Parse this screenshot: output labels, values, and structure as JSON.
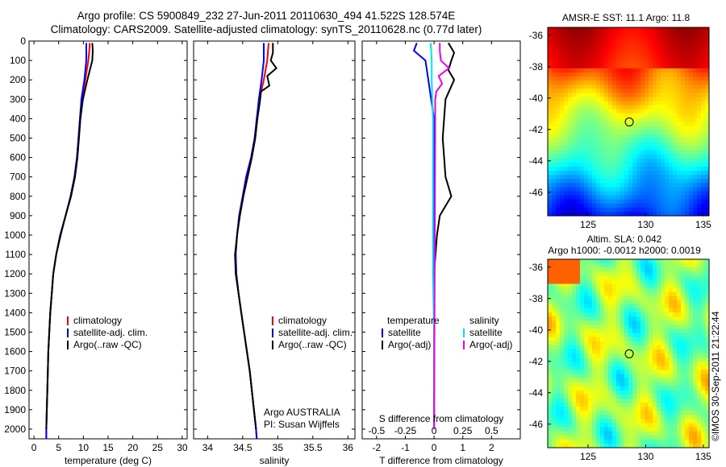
{
  "header": {
    "title_line1": "Argo profile: CS 5900849_232 27-Jun-2011 20110630_494 41.522S 128.574E",
    "title_line2": "Climatology: CARS2009. Satellite-adjusted climatology: synTS_20110628.nc (0.77d later)"
  },
  "depth_ticks": [
    "0",
    "100",
    "200",
    "300",
    "400",
    "500",
    "600",
    "700",
    "800",
    "900",
    "1000",
    "1100",
    "1200",
    "1300",
    "1400",
    "1500",
    "1600",
    "1700",
    "1800",
    "1900",
    "2000"
  ],
  "colors": {
    "climatology": "#ff0000",
    "satellite": "#0000ff",
    "argo": "#000000",
    "sat_salinity": "#00e5ee",
    "argo_salinity": "#ee00ee"
  },
  "chart_data": [
    {
      "id": "temperature",
      "type": "line",
      "xlabel": "temperature (deg C)",
      "xlim": [
        -1,
        31
      ],
      "ylim": [
        0,
        2050
      ],
      "x_ticks": [
        "0",
        "5",
        "10",
        "15",
        "20",
        "25",
        "30"
      ],
      "legend": [
        "climatology",
        "satellite-adj. clim.",
        "Argo(..raw -QC)"
      ],
      "series": [
        {
          "name": "climatology",
          "color": "#ff0000",
          "points": [
            [
              11.3,
              10
            ],
            [
              11.2,
              50
            ],
            [
              11.0,
              100
            ],
            [
              10.4,
              200
            ],
            [
              9.7,
              300
            ],
            [
              9.3,
              400
            ],
            [
              9.0,
              500
            ],
            [
              8.7,
              600
            ],
            [
              8.2,
              700
            ],
            [
              7.4,
              800
            ],
            [
              6.4,
              900
            ],
            [
              5.3,
              1000
            ],
            [
              4.5,
              1100
            ],
            [
              3.9,
              1200
            ],
            [
              3.6,
              1300
            ],
            [
              3.3,
              1400
            ],
            [
              3.1,
              1500
            ],
            [
              2.9,
              1600
            ],
            [
              2.8,
              1700
            ],
            [
              2.7,
              1800
            ],
            [
              2.6,
              1900
            ],
            [
              2.5,
              2000
            ],
            [
              2.5,
              2050
            ]
          ]
        },
        {
          "name": "satellite-adj. clim.",
          "color": "#0000ff",
          "points": [
            [
              10.6,
              10
            ],
            [
              10.6,
              50
            ],
            [
              10.6,
              100
            ],
            [
              10.2,
              200
            ],
            [
              9.6,
              300
            ],
            [
              9.3,
              400
            ],
            [
              9.0,
              500
            ],
            [
              8.7,
              600
            ],
            [
              8.2,
              700
            ],
            [
              7.4,
              800
            ],
            [
              6.4,
              900
            ],
            [
              5.3,
              1000
            ],
            [
              4.5,
              1100
            ],
            [
              3.9,
              1200
            ],
            [
              3.6,
              1300
            ],
            [
              3.3,
              1400
            ],
            [
              3.1,
              1500
            ],
            [
              2.9,
              1600
            ],
            [
              2.8,
              1700
            ],
            [
              2.7,
              1800
            ],
            [
              2.6,
              1900
            ],
            [
              2.5,
              2000
            ],
            [
              2.5,
              2050
            ]
          ]
        },
        {
          "name": "Argo(..raw -QC)",
          "color": "#000000",
          "points": [
            [
              11.8,
              10
            ],
            [
              11.9,
              50
            ],
            [
              11.8,
              100
            ],
            [
              10.8,
              200
            ],
            [
              9.9,
              300
            ],
            [
              9.4,
              400
            ],
            [
              9.1,
              500
            ],
            [
              8.8,
              600
            ],
            [
              8.3,
              700
            ],
            [
              7.5,
              800
            ],
            [
              6.4,
              900
            ],
            [
              5.4,
              1000
            ],
            [
              4.5,
              1100
            ],
            [
              3.9,
              1200
            ],
            [
              3.6,
              1300
            ],
            [
              3.3,
              1400
            ],
            [
              3.1,
              1500
            ],
            [
              2.9,
              1600
            ],
            [
              2.8,
              1700
            ],
            [
              2.7,
              1800
            ],
            [
              2.6,
              1900
            ],
            [
              2.5,
              2000
            ]
          ]
        }
      ]
    },
    {
      "id": "salinity",
      "type": "line",
      "xlabel": "salinity",
      "xlim": [
        33.8,
        36.1
      ],
      "ylim": [
        0,
        2050
      ],
      "x_ticks": [
        "34",
        "34.5",
        "35",
        "35.5",
        "36"
      ],
      "legend": [
        "climatology",
        "satellite-adj. clim.",
        "Argo(..raw -QC)"
      ],
      "annotation": [
        "Argo AUSTRALIA",
        "PI: Susan Wijffels"
      ],
      "series": [
        {
          "name": "climatology",
          "color": "#ff0000",
          "points": [
            [
              34.87,
              10
            ],
            [
              34.85,
              100
            ],
            [
              34.8,
              200
            ],
            [
              34.74,
              300
            ],
            [
              34.7,
              400
            ],
            [
              34.67,
              500
            ],
            [
              34.62,
              600
            ],
            [
              34.55,
              700
            ],
            [
              34.5,
              800
            ],
            [
              34.45,
              900
            ],
            [
              34.42,
              1000
            ],
            [
              34.4,
              1100
            ],
            [
              34.41,
              1200
            ],
            [
              34.44,
              1300
            ],
            [
              34.48,
              1400
            ],
            [
              34.52,
              1500
            ],
            [
              34.56,
              1600
            ],
            [
              34.6,
              1700
            ],
            [
              34.63,
              1800
            ],
            [
              34.66,
              1900
            ],
            [
              34.69,
              2000
            ],
            [
              34.7,
              2050
            ]
          ]
        },
        {
          "name": "satellite-adj. clim.",
          "color": "#0000ff",
          "points": [
            [
              34.8,
              10
            ],
            [
              34.8,
              100
            ],
            [
              34.77,
              200
            ],
            [
              34.73,
              300
            ],
            [
              34.7,
              400
            ],
            [
              34.67,
              500
            ],
            [
              34.62,
              600
            ],
            [
              34.55,
              700
            ],
            [
              34.5,
              800
            ],
            [
              34.45,
              900
            ],
            [
              34.42,
              1000
            ],
            [
              34.4,
              1100
            ],
            [
              34.41,
              1200
            ],
            [
              34.44,
              1300
            ],
            [
              34.48,
              1400
            ],
            [
              34.52,
              1500
            ],
            [
              34.56,
              1600
            ],
            [
              34.6,
              1700
            ],
            [
              34.63,
              1800
            ],
            [
              34.66,
              1900
            ],
            [
              34.69,
              2000
            ],
            [
              34.7,
              2050
            ]
          ]
        },
        {
          "name": "Argo(..raw -QC)",
          "color": "#000000",
          "points": [
            [
              34.93,
              10
            ],
            [
              34.93,
              60
            ],
            [
              34.9,
              100
            ],
            [
              34.98,
              140
            ],
            [
              34.85,
              180
            ],
            [
              34.88,
              230
            ],
            [
              34.76,
              260
            ],
            [
              34.75,
              300
            ],
            [
              34.71,
              400
            ],
            [
              34.68,
              500
            ],
            [
              34.63,
              600
            ],
            [
              34.57,
              700
            ],
            [
              34.51,
              800
            ],
            [
              34.46,
              900
            ],
            [
              34.42,
              1000
            ],
            [
              34.39,
              1100
            ],
            [
              34.4,
              1200
            ],
            [
              34.44,
              1300
            ],
            [
              34.48,
              1400
            ],
            [
              34.52,
              1500
            ],
            [
              34.56,
              1600
            ],
            [
              34.6,
              1700
            ],
            [
              34.63,
              1800
            ],
            [
              34.66,
              1900
            ],
            [
              34.69,
              2000
            ]
          ]
        }
      ]
    },
    {
      "id": "difference",
      "type": "line",
      "xlabel": "T difference from climatology",
      "xlabel_top": "S difference from climatology",
      "xlim": [
        -2.5,
        3
      ],
      "ylim": [
        0,
        2050
      ],
      "x_ticks": [
        "-2",
        "-1",
        "0",
        "1",
        "2"
      ],
      "x_ticks_top": [
        "-0.5",
        "-0.25",
        "0",
        "0.25",
        "0.5"
      ],
      "legend_headers": [
        "temperature",
        "salinity"
      ],
      "legend": [
        "satellite",
        "Argo(-adj)",
        "satellite",
        "Argo(-adj)"
      ],
      "series": [
        {
          "name": "temperature satellite",
          "color": "#0000ff",
          "points": [
            [
              -0.6,
              10
            ],
            [
              -0.7,
              50
            ],
            [
              -0.3,
              100
            ],
            [
              -0.2,
              200
            ],
            [
              -0.1,
              300
            ],
            [
              0,
              400
            ],
            [
              0,
              600
            ],
            [
              0,
              1000
            ],
            [
              0,
              2000
            ]
          ]
        },
        {
          "name": "temperature Argo(-adj)",
          "color": "#000000",
          "points": [
            [
              0.5,
              10
            ],
            [
              0.7,
              60
            ],
            [
              0.6,
              100
            ],
            [
              0.5,
              150
            ],
            [
              0.7,
              200
            ],
            [
              0.4,
              300
            ],
            [
              0.3,
              500
            ],
            [
              0.4,
              700
            ],
            [
              0.6,
              800
            ],
            [
              0.4,
              850
            ],
            [
              0.2,
              900
            ],
            [
              0.1,
              1000
            ],
            [
              0,
              1200
            ],
            [
              0,
              2000
            ]
          ]
        },
        {
          "name": "salinity satellite",
          "color": "#00e5ee",
          "points": [
            [
              -0.03,
              10
            ],
            [
              -0.02,
              100
            ],
            [
              -0.02,
              200
            ],
            [
              -0.01,
              400
            ],
            [
              -0.01,
              600
            ],
            [
              -0.01,
              800
            ],
            [
              -0.01,
              1000
            ],
            [
              -0.01,
              1200
            ],
            [
              0,
              1500
            ],
            [
              0,
              2000
            ]
          ]
        },
        {
          "name": "salinity Argo(-adj)",
          "color": "#ee00ee",
          "points": [
            [
              0.05,
              10
            ],
            [
              0.05,
              50
            ],
            [
              0.06,
              100
            ],
            [
              0.13,
              140
            ],
            [
              0.04,
              180
            ],
            [
              0.07,
              220
            ],
            [
              0.02,
              260
            ],
            [
              0.01,
              300
            ],
            [
              0.01,
              500
            ],
            [
              0,
              2000
            ]
          ]
        }
      ]
    },
    {
      "id": "sst_map",
      "type": "heatmap",
      "title": "AMSR-E SST: 11.1  Argo: 11.8",
      "x_ticks": [
        "125",
        "130",
        "135"
      ],
      "y_ticks": [
        "-36",
        "-38",
        "-40",
        "-42",
        "-44",
        "-46"
      ],
      "xlim": [
        121.5,
        135.5
      ],
      "ylim": [
        -47.5,
        -35.5
      ],
      "marker": {
        "lon": 128.574,
        "lat": -41.522
      }
    },
    {
      "id": "sla_map",
      "type": "heatmap",
      "title": "Altim. SLA: 0.042",
      "title_line2": "Argo h1000: -0.0012 h2000: 0.0019",
      "x_ticks": [
        "125",
        "130",
        "135"
      ],
      "y_ticks": [
        "-36",
        "-38",
        "-40",
        "-42",
        "-44",
        "-46"
      ],
      "xlim": [
        121.5,
        135.5
      ],
      "ylim": [
        -47.5,
        -35.5
      ],
      "marker": {
        "lon": 128.574,
        "lat": -41.522
      }
    }
  ],
  "footer": {
    "credit": "©IMOS 30-Sep-2011 21:22:44"
  }
}
